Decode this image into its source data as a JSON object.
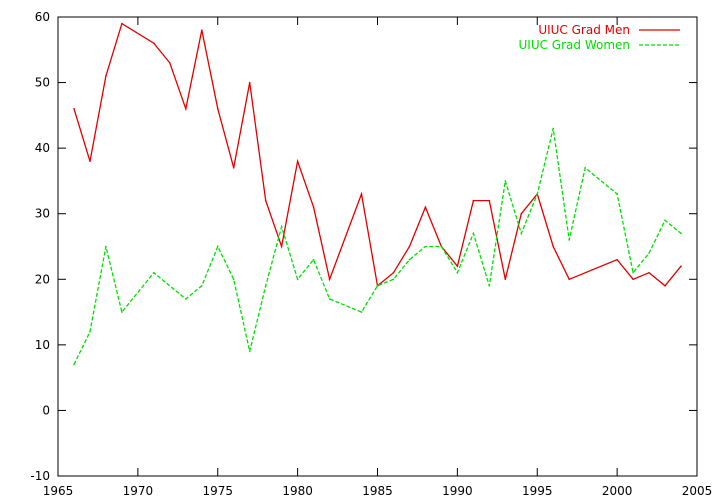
{
  "chart_data": {
    "type": "line",
    "title": "",
    "xlabel": "",
    "ylabel": "",
    "xlim": [
      1965,
      2005
    ],
    "ylim": [
      -10,
      60
    ],
    "xticks": [
      1965,
      1970,
      1975,
      1980,
      1985,
      1990,
      1995,
      2000,
      2005
    ],
    "yticks": [
      -10,
      0,
      10,
      20,
      30,
      40,
      50,
      60
    ],
    "grid": false,
    "legend_position": "top-right",
    "series": [
      {
        "name": "UIUC Grad Men",
        "color": "#e00000",
        "style": "solid",
        "x": [
          1966,
          1967,
          1968,
          1969,
          1971,
          1972,
          1973,
          1974,
          1975,
          1976,
          1977,
          1978,
          1979,
          1980,
          1981,
          1982,
          1984,
          1985,
          1986,
          1987,
          1988,
          1989,
          1990,
          1991,
          1992,
          1993,
          1994,
          1995,
          1996,
          1997,
          2000,
          2001,
          2002,
          2003,
          2004
        ],
        "y": [
          46,
          38,
          51,
          59,
          56,
          53,
          46,
          58,
          46,
          37,
          50,
          32,
          25,
          38,
          31,
          20,
          33,
          19,
          21,
          25,
          31,
          25,
          22,
          32,
          32,
          20,
          30,
          33,
          25,
          20,
          23,
          20,
          21,
          19,
          22
        ]
      },
      {
        "name": "UIUC Grad Women",
        "color": "#00e000",
        "style": "dashed",
        "x": [
          1966,
          1967,
          1968,
          1969,
          1971,
          1973,
          1974,
          1975,
          1976,
          1977,
          1978,
          1979,
          1980,
          1981,
          1982,
          1984,
          1985,
          1986,
          1987,
          1988,
          1989,
          1990,
          1991,
          1992,
          1993,
          1994,
          1995,
          1996,
          1997,
          1998,
          2000,
          2001,
          2002,
          2003,
          2004
        ],
        "y": [
          7,
          12,
          25,
          15,
          21,
          17,
          19,
          25,
          20,
          9,
          19,
          28,
          20,
          23,
          17,
          15,
          19,
          20,
          23,
          25,
          25,
          21,
          27,
          19,
          35,
          27,
          33,
          43,
          26,
          37,
          33,
          21,
          24,
          29,
          27
        ]
      }
    ]
  }
}
